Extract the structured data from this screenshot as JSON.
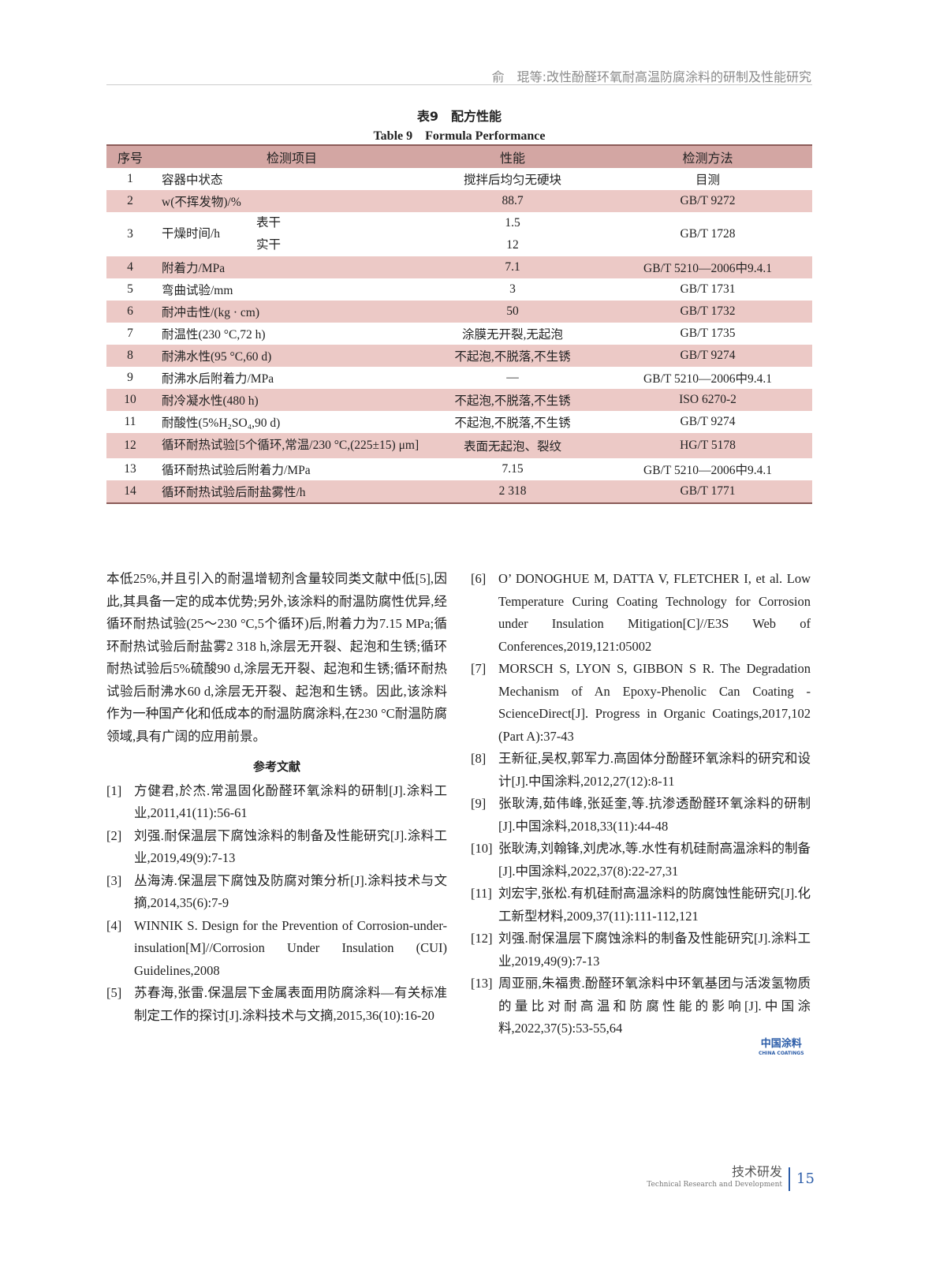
{
  "header": {
    "running_title": "俞　琨等:改性酚醛环氧耐高温防腐涂料的研制及性能研究"
  },
  "table": {
    "caption_cn": "表9　配方性能",
    "caption_en": "Table 9　Formula Performance",
    "columns": [
      "序号",
      "检测项目",
      "性能",
      "检测方法"
    ],
    "rows": [
      {
        "no": "1",
        "item": "容器中状态",
        "value": "搅拌后均匀无硬块",
        "method": "目测"
      },
      {
        "no": "2",
        "item": "w(不挥发物)/%",
        "value": "88.7",
        "method": "GB/T 9272"
      },
      {
        "no": "3",
        "item": "干燥时间/h",
        "sub1": "表干",
        "value1": "1.5",
        "sub2": "实干",
        "value2": "12",
        "method": "GB/T 1728"
      },
      {
        "no": "4",
        "item": "附着力/MPa",
        "value": "7.1",
        "method": "GB/T 5210—2006中9.4.1"
      },
      {
        "no": "5",
        "item": "弯曲试验/mm",
        "value": "3",
        "method": "GB/T 1731"
      },
      {
        "no": "6",
        "item": "耐冲击性/(kg · cm)",
        "value": "50",
        "method": "GB/T 1732"
      },
      {
        "no": "7",
        "item": "耐温性(230 °C,72 h)",
        "value": "涂膜无开裂,无起泡",
        "method": "GB/T 1735"
      },
      {
        "no": "8",
        "item": "耐沸水性(95 °C,60 d)",
        "value": "不起泡,不脱落,不生锈",
        "method": "GB/T 9274"
      },
      {
        "no": "9",
        "item": "耐沸水后附着力/MPa",
        "value": "—",
        "method": "GB/T 5210—2006中9.4.1"
      },
      {
        "no": "10",
        "item": "耐冷凝水性(480 h)",
        "value": "不起泡,不脱落,不生锈",
        "method": "ISO 6270-2"
      },
      {
        "no": "11",
        "item": "耐酸性(5%H₂SO₄,90 d)",
        "value": "不起泡,不脱落,不生锈",
        "method": "GB/T 9274"
      },
      {
        "no": "12",
        "item": "循环耐热试验[5个循环,常温/230 °C,(225±15) μm]",
        "value": "表面无起泡、裂纹",
        "method": "HG/T 5178"
      },
      {
        "no": "13",
        "item": "循环耐热试验后附着力/MPa",
        "value": "7.15",
        "method": "GB/T 5210—2006中9.4.1"
      },
      {
        "no": "14",
        "item": "循环耐热试验后耐盐雾性/h",
        "value": "2 318",
        "method": "GB/T 1771"
      }
    ]
  },
  "body": {
    "paragraph": "本低25%,并且引入的耐温增韧剂含量较同类文献中低[5],因此,其具备一定的成本优势;另外,该涂料的耐温防腐性优异,经循环耐热试验(25～230 °C,5个循环)后,附着力为7.15 MPa;循环耐热试验后耐盐雾2 318 h,涂层无开裂、起泡和生锈;循环耐热试验后5%硫酸90 d,涂层无开裂、起泡和生锈;循环耐热试验后耐沸水60 d,涂层无开裂、起泡和生锈。因此,该涂料作为一种国产化和低成本的耐温防腐涂料,在230 °C耐温防腐领域,具有广阔的应用前景。"
  },
  "references": {
    "title": "参考文献",
    "items": [
      {
        "n": "[1]",
        "t": "方健君,於杰.常温固化酚醛环氧涂料的研制[J].涂料工业,2011,41(11):56-61"
      },
      {
        "n": "[2]",
        "t": "刘强.耐保温层下腐蚀涂料的制备及性能研究[J].涂料工业,2019,49(9):7-13"
      },
      {
        "n": "[3]",
        "t": "丛海涛.保温层下腐蚀及防腐对策分析[J].涂料技术与文摘,2014,35(6):7-9"
      },
      {
        "n": "[4]",
        "t": "WINNIK S. Design for the Prevention of Corrosion-under-insulation[M]//Corrosion Under Insulation (CUI) Guidelines,2008"
      },
      {
        "n": "[5]",
        "t": "苏春海,张雷.保温层下金属表面用防腐涂料—有关标准制定工作的探讨[J].涂料技术与文摘,2015,36(10):16-20"
      },
      {
        "n": "[6]",
        "t": "O’ DONOGHUE M, DATTA V, FLETCHER I, et al. Low Temperature Curing Coating Technology for Corrosion under Insulation Mitigation[C]//E3S Web of Conferences,2019,121:05002"
      },
      {
        "n": "[7]",
        "t": "MORSCH S, LYON S, GIBBON S R. The Degradation Mechanism of An Epoxy-Phenolic Can Coating - ScienceDirect[J]. Progress in Organic Coatings,2017,102 (Part A):37-43"
      },
      {
        "n": "[8]",
        "t": "王新征,吴权,郭军力.高固体分酚醛环氧涂料的研究和设计[J].中国涂料,2012,27(12):8-11"
      },
      {
        "n": "[9]",
        "t": "张耿涛,茹伟峰,张延奎,等.抗渗透酚醛环氧涂料的研制[J].中国涂料,2018,33(11):44-48"
      },
      {
        "n": "[10]",
        "t": "张耿涛,刘翰锋,刘虎冰,等.水性有机硅耐高温涂料的制备[J].中国涂料,2022,37(8):22-27,31"
      },
      {
        "n": "[11]",
        "t": "刘宏宇,张松.有机硅耐高温涂料的防腐蚀性能研究[J].化工新型材料,2009,37(11):111-112,121"
      },
      {
        "n": "[12]",
        "t": "刘强.耐保温层下腐蚀涂料的制备及性能研究[J].涂料工业,2019,49(9):7-13"
      },
      {
        "n": "[13]",
        "t": "周亚丽,朱福贵.酚醛环氧涂料中环氧基团与活泼氢物质的量比对耐高温和防腐性能的影响[J].中国涂料,2022,37(5):53-55,64"
      }
    ]
  },
  "logo": {
    "cn": "中国涂料",
    "en": "CHINA COATINGS"
  },
  "footer": {
    "section_cn": "技术研发",
    "section_en": "Technical Research and Development",
    "page": "15"
  },
  "colors": {
    "header_row": "#d3a6a3",
    "stripe": "#ecc9c6",
    "accent": "#2b5ca8"
  }
}
